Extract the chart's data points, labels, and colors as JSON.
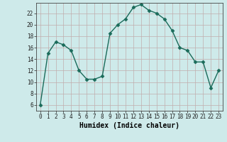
{
  "x": [
    0,
    1,
    2,
    3,
    4,
    5,
    6,
    7,
    8,
    9,
    10,
    11,
    12,
    13,
    14,
    15,
    16,
    17,
    18,
    19,
    20,
    21,
    22,
    23
  ],
  "y": [
    6,
    15,
    17,
    16.5,
    15.5,
    12,
    10.5,
    10.5,
    11,
    18.5,
    20,
    21,
    23,
    23.5,
    22.5,
    22,
    21,
    19,
    16,
    15.5,
    13.5,
    13.5,
    9,
    12
  ],
  "xlabel": "Humidex (Indice chaleur)",
  "bg_color": "#ceeaea",
  "grid_color": "#c0adad",
  "line_color": "#1a6b5a",
  "marker_color": "#1a6b5a",
  "yticks": [
    6,
    8,
    10,
    12,
    14,
    16,
    18,
    20,
    22
  ],
  "ylim": [
    5.0,
    23.8
  ],
  "xlim": [
    -0.5,
    23.5
  ],
  "xticks": [
    0,
    1,
    2,
    3,
    4,
    5,
    6,
    7,
    8,
    9,
    10,
    11,
    12,
    13,
    14,
    15,
    16,
    17,
    18,
    19,
    20,
    21,
    22,
    23
  ]
}
